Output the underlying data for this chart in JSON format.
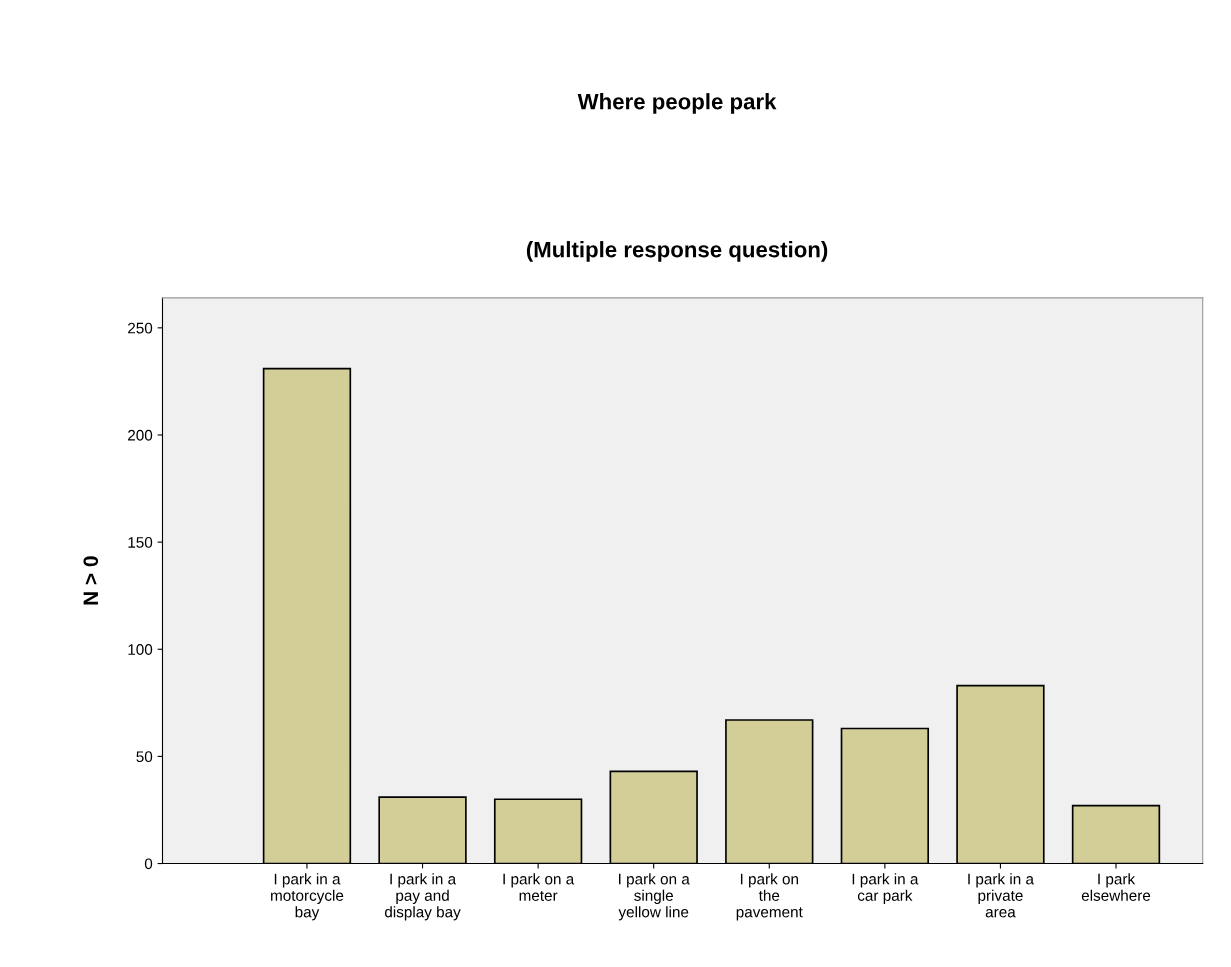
{
  "chart_data": {
    "type": "bar",
    "title": "Where people park",
    "subtitle": "(Multiple response question)",
    "ylabel": "N > 0",
    "categories": [
      "I park in a\nmotorcycle\nbay",
      "I park in a\npay and\ndisplay bay",
      "I park on a\nmeter",
      "I park on a\nsingle\nyellow line",
      "I park on\nthe\npavement",
      "I park in a\ncar park",
      "I park in a\nprivate\narea",
      "I park\nelsewhere"
    ],
    "values": [
      231,
      31,
      30,
      43,
      67,
      63,
      83,
      27
    ],
    "color": "#d3ce97",
    "ylim": [
      0,
      264
    ],
    "yticks": [
      0,
      50,
      100,
      150,
      200,
      250
    ],
    "grid": false
  }
}
